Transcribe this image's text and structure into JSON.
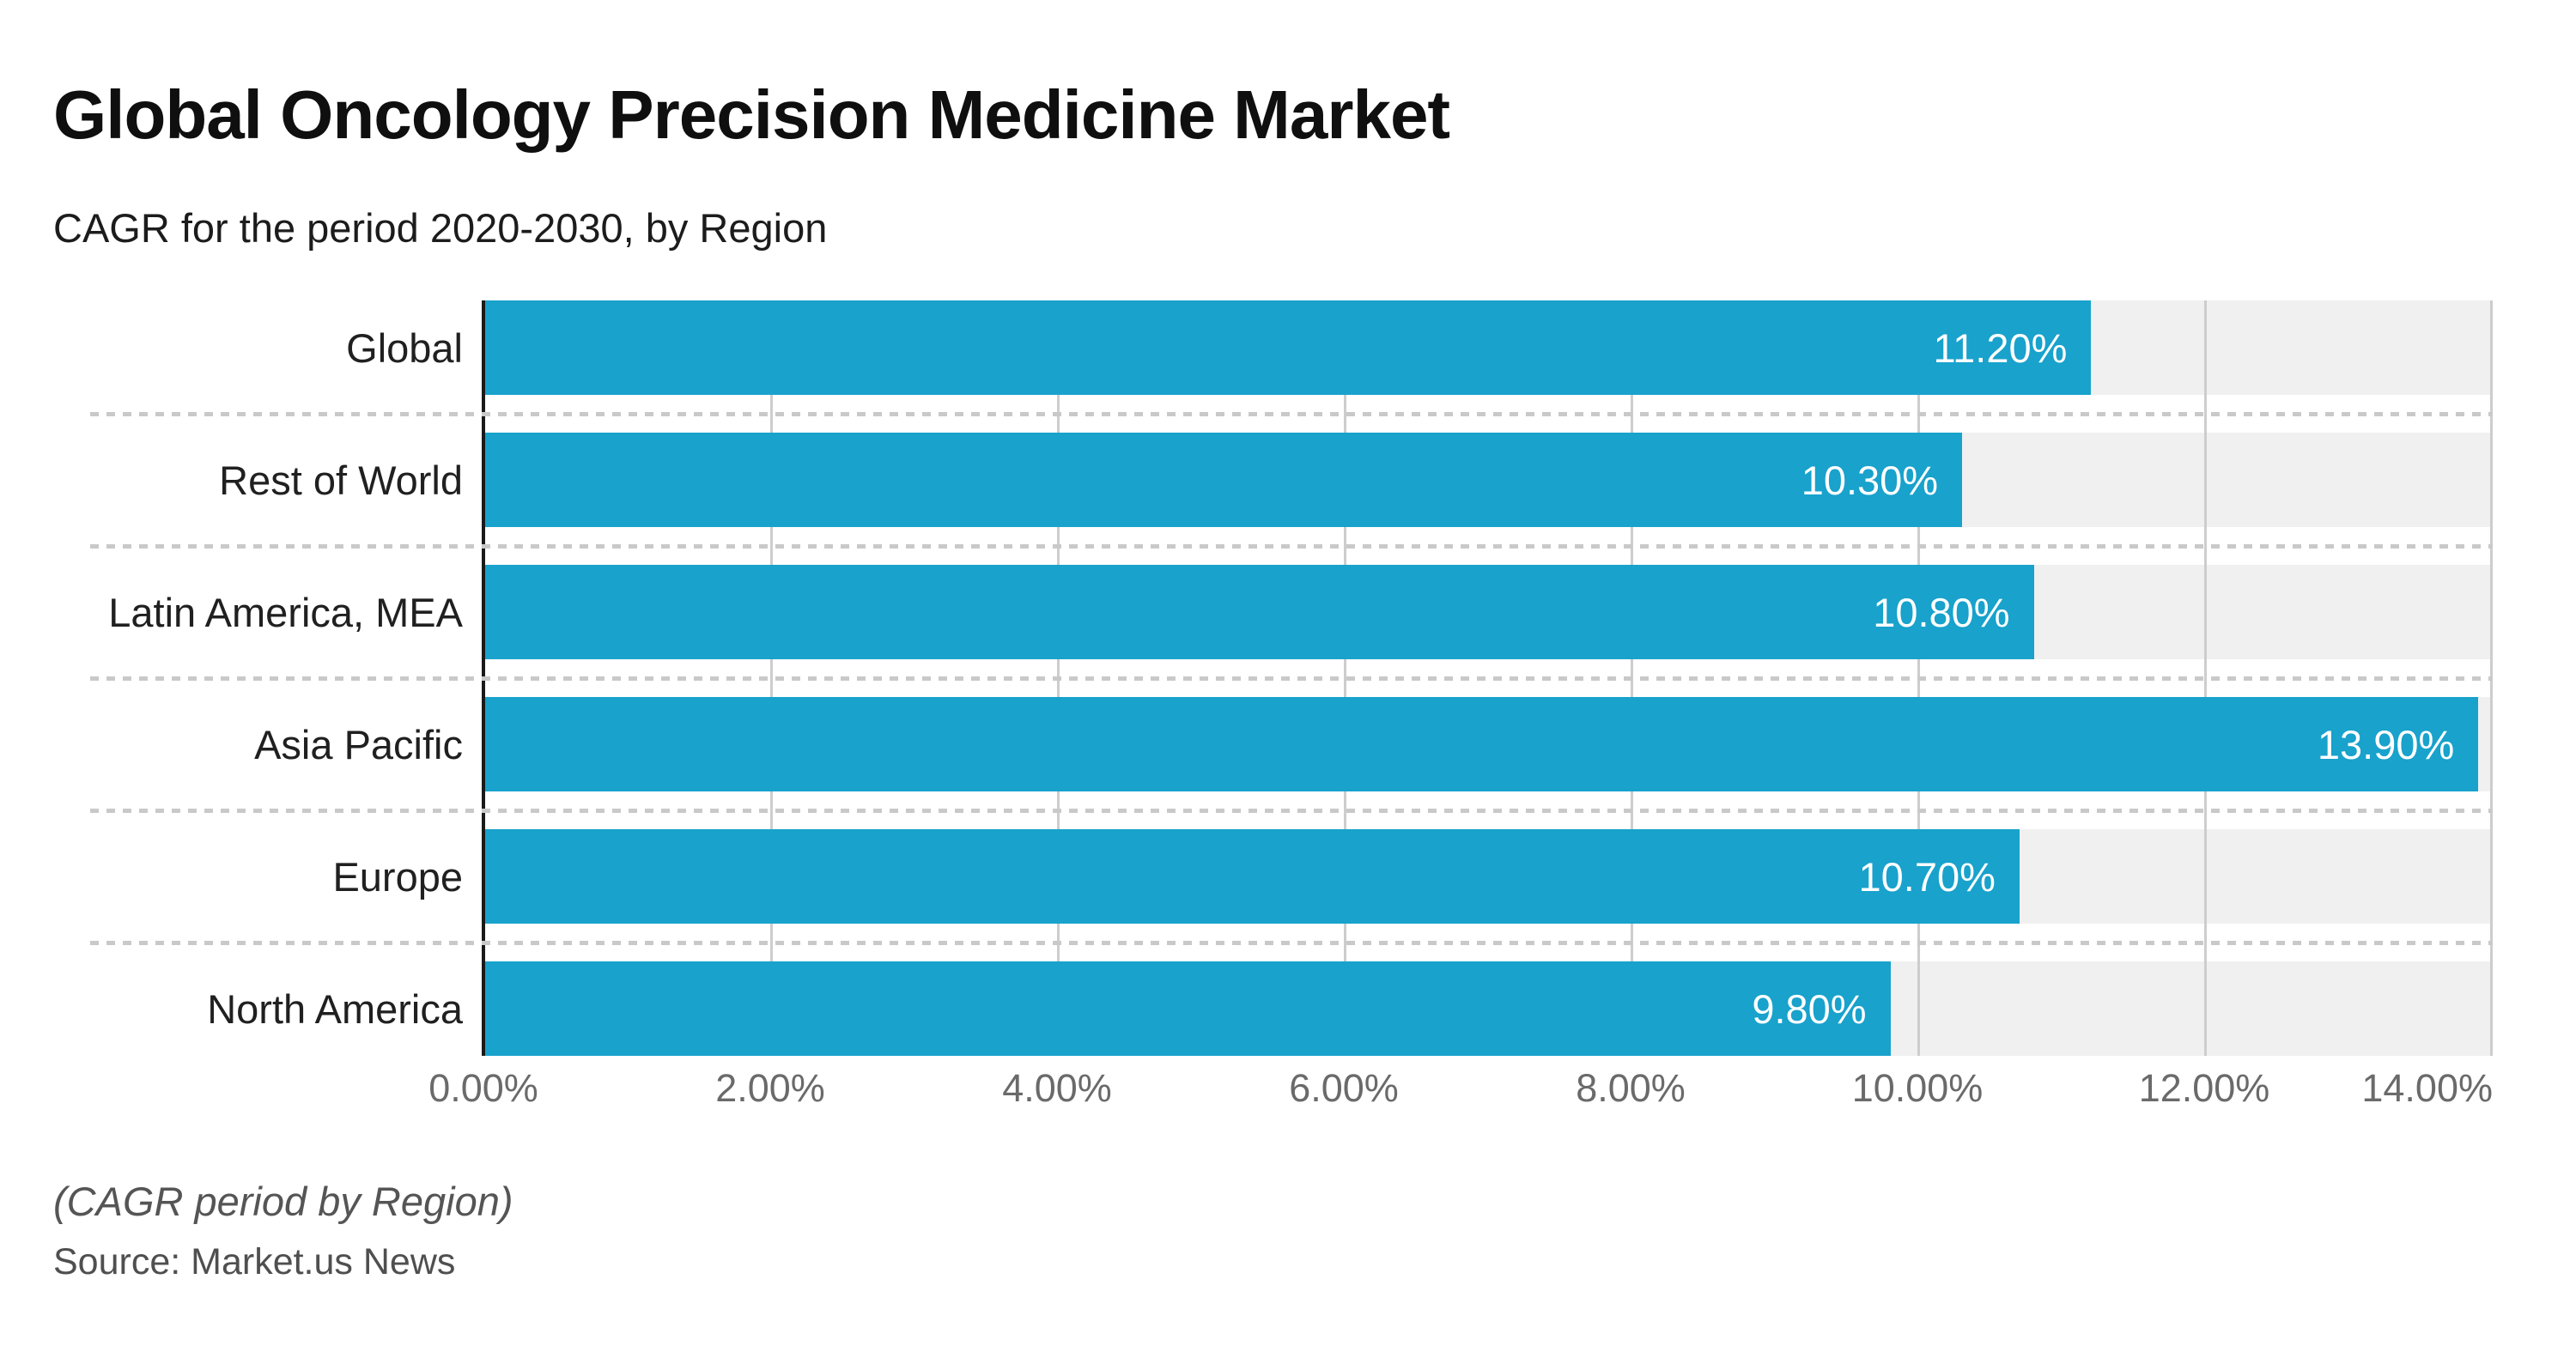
{
  "header": {
    "title": "Global Oncology Precision Medicine Market",
    "subtitle": "CAGR for the period 2020-2030, by Region"
  },
  "footer": {
    "note": "(CAGR period by Region)",
    "source": "Source: Market.us News"
  },
  "chart_data": {
    "type": "bar",
    "orientation": "horizontal",
    "title": "Global Oncology Precision Medicine Market",
    "subtitle": "CAGR for the period 2020-2030, by Region",
    "categories": [
      "Global",
      "Rest of World",
      "Latin America, MEA",
      "Asia Pacific",
      "Europe",
      "North America"
    ],
    "values": [
      11.2,
      10.3,
      10.8,
      13.9,
      10.7,
      9.8
    ],
    "value_labels": [
      "11.20%",
      "10.30%",
      "10.80%",
      "13.90%",
      "10.70%",
      "9.80%"
    ],
    "xlabel": "",
    "ylabel": "",
    "xlim": [
      0,
      14
    ],
    "x_tick_step": 2,
    "x_ticks": [
      "0.00%",
      "2.00%",
      "4.00%",
      "6.00%",
      "8.00%",
      "10.00%",
      "12.00%",
      "14.00%"
    ],
    "grid": "vertical-on",
    "legend": "none",
    "colors": {
      "bar": "#18a2cc",
      "track": "#f0f0f0",
      "gridline": "#cdcdcd",
      "separator_dots": "#c9c9c9",
      "axis_line": "#1a1a1a",
      "title_text": "#0f0f0f",
      "category_text": "#202020",
      "tick_text": "#6a6a6a",
      "value_text": "#ffffff",
      "footnote_text": "#555555",
      "background": "#ffffff"
    }
  }
}
